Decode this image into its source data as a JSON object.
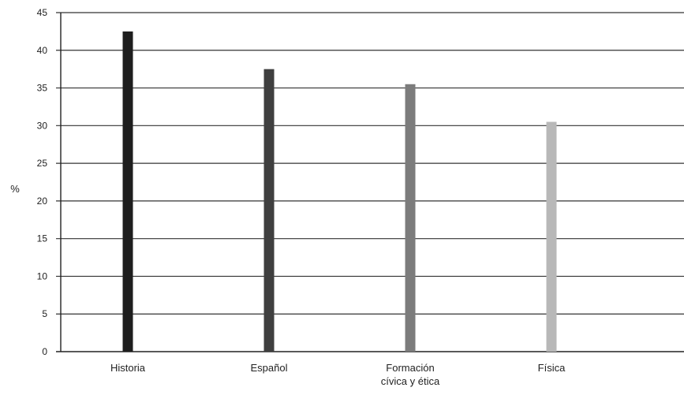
{
  "chart_data": {
    "type": "bar",
    "title": "",
    "xlabel": "",
    "ylabel": "%",
    "categories": [
      {
        "lines": [
          "Historia"
        ]
      },
      {
        "lines": [
          "Español"
        ]
      },
      {
        "lines": [
          "Formación",
          "cívica y ética"
        ]
      },
      {
        "lines": [
          "Física"
        ]
      }
    ],
    "values": [
      42.5,
      37.5,
      35.5,
      30.5
    ],
    "ylim": [
      0,
      45
    ],
    "yticks": [
      0,
      5,
      10,
      15,
      20,
      25,
      30,
      35,
      40,
      45
    ],
    "grid": true,
    "legend": "none",
    "colors": {
      "bars": [
        "#1e1e1e",
        "#3f3f3f",
        "#7c7c7c",
        "#b8b8b8"
      ],
      "grid": "#333333",
      "axis": "#222222",
      "text": "#222222"
    }
  }
}
